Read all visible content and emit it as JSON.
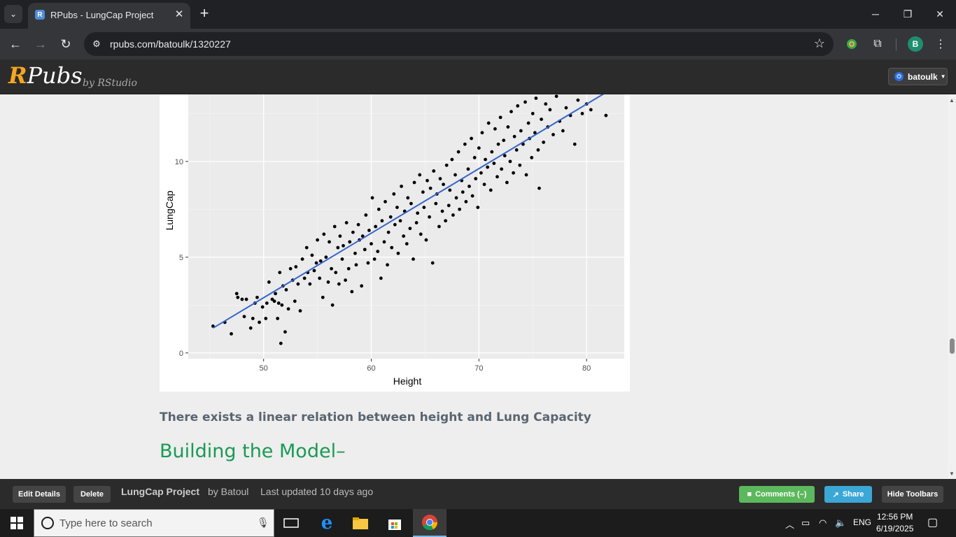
{
  "browser": {
    "tab_title": "RPubs - LungCap Project",
    "url": "rpubs.com/batoulk/1320227",
    "profile_initial": "B"
  },
  "site": {
    "logo_r": "R",
    "logo_rest": "Pubs",
    "by": "by RStudio",
    "user": "batoulk"
  },
  "content": {
    "statement": "There exists a linear relation between height and Lung Capacity",
    "heading": "Building the Model–"
  },
  "chart_data": {
    "type": "scatter",
    "xlabel": "Height",
    "ylabel": "LungCap",
    "xlim": [
      43,
      83.5
    ],
    "ylim": [
      -0.3,
      13.5
    ],
    "x_ticks": [
      50,
      60,
      70,
      80
    ],
    "y_ticks": [
      0,
      5,
      10
    ],
    "grid": true,
    "point_color": "#000000",
    "trend_color": "#3366cc",
    "trend_line": {
      "x": [
        45.3,
        81.8
      ],
      "y": [
        1.3,
        13.6
      ]
    },
    "points": [
      [
        45.3,
        1.4
      ],
      [
        46.4,
        1.6
      ],
      [
        47.0,
        1.0
      ],
      [
        47.5,
        3.1
      ],
      [
        47.6,
        2.9
      ],
      [
        48.0,
        2.8
      ],
      [
        48.2,
        1.9
      ],
      [
        48.4,
        2.8
      ],
      [
        48.8,
        1.3
      ],
      [
        49.0,
        1.8
      ],
      [
        49.2,
        2.6
      ],
      [
        49.4,
        2.9
      ],
      [
        49.6,
        1.6
      ],
      [
        49.9,
        2.4
      ],
      [
        50.2,
        1.8
      ],
      [
        50.3,
        2.6
      ],
      [
        50.5,
        3.7
      ],
      [
        50.8,
        2.8
      ],
      [
        51.0,
        2.7
      ],
      [
        51.1,
        3.1
      ],
      [
        51.3,
        1.8
      ],
      [
        51.4,
        2.6
      ],
      [
        51.5,
        4.2
      ],
      [
        51.6,
        0.5
      ],
      [
        51.7,
        2.5
      ],
      [
        51.8,
        3.5
      ],
      [
        52.0,
        1.1
      ],
      [
        52.1,
        3.3
      ],
      [
        52.3,
        2.3
      ],
      [
        52.5,
        4.4
      ],
      [
        52.7,
        3.8
      ],
      [
        52.9,
        2.7
      ],
      [
        53.0,
        4.5
      ],
      [
        53.2,
        3.6
      ],
      [
        53.4,
        2.2
      ],
      [
        53.6,
        4.9
      ],
      [
        53.8,
        3.9
      ],
      [
        54.0,
        5.5
      ],
      [
        54.1,
        4.2
      ],
      [
        54.3,
        3.6
      ],
      [
        54.5,
        5.1
      ],
      [
        54.7,
        4.3
      ],
      [
        54.9,
        4.7
      ],
      [
        55.0,
        5.9
      ],
      [
        55.2,
        3.9
      ],
      [
        55.3,
        4.8
      ],
      [
        55.5,
        2.9
      ],
      [
        55.6,
        6.2
      ],
      [
        55.8,
        5.0
      ],
      [
        56.0,
        3.7
      ],
      [
        56.1,
        5.8
      ],
      [
        56.3,
        4.4
      ],
      [
        56.4,
        2.5
      ],
      [
        56.6,
        6.6
      ],
      [
        56.7,
        4.2
      ],
      [
        56.9,
        5.5
      ],
      [
        57.0,
        3.6
      ],
      [
        57.1,
        6.1
      ],
      [
        57.3,
        4.9
      ],
      [
        57.4,
        5.6
      ],
      [
        57.6,
        3.8
      ],
      [
        57.7,
        6.8
      ],
      [
        57.9,
        4.4
      ],
      [
        58.0,
        5.8
      ],
      [
        58.2,
        3.2
      ],
      [
        58.3,
        6.3
      ],
      [
        58.5,
        5.2
      ],
      [
        58.6,
        4.6
      ],
      [
        58.8,
        6.7
      ],
      [
        58.9,
        5.9
      ],
      [
        59.1,
        3.5
      ],
      [
        59.2,
        6.1
      ],
      [
        59.4,
        5.4
      ],
      [
        59.5,
        7.2
      ],
      [
        59.7,
        4.7
      ],
      [
        59.8,
        6.4
      ],
      [
        60.0,
        5.7
      ],
      [
        60.1,
        8.1
      ],
      [
        60.3,
        4.9
      ],
      [
        60.4,
        6.6
      ],
      [
        60.6,
        5.3
      ],
      [
        60.7,
        7.5
      ],
      [
        60.9,
        3.9
      ],
      [
        61.0,
        6.9
      ],
      [
        61.2,
        5.8
      ],
      [
        61.3,
        7.9
      ],
      [
        61.5,
        4.6
      ],
      [
        61.6,
        6.3
      ],
      [
        61.8,
        7.1
      ],
      [
        61.9,
        5.5
      ],
      [
        62.1,
        8.3
      ],
      [
        62.2,
        6.7
      ],
      [
        62.4,
        7.6
      ],
      [
        62.5,
        5.2
      ],
      [
        62.7,
        6.9
      ],
      [
        62.8,
        8.7
      ],
      [
        63.0,
        6.1
      ],
      [
        63.1,
        7.4
      ],
      [
        63.3,
        5.7
      ],
      [
        63.4,
        8.1
      ],
      [
        63.6,
        6.5
      ],
      [
        63.7,
        7.8
      ],
      [
        63.9,
        4.9
      ],
      [
        64.0,
        8.9
      ],
      [
        64.2,
        6.8
      ],
      [
        64.3,
        7.3
      ],
      [
        64.5,
        9.3
      ],
      [
        64.6,
        6.2
      ],
      [
        64.8,
        8.4
      ],
      [
        64.9,
        7.6
      ],
      [
        65.1,
        5.9
      ],
      [
        65.2,
        9.0
      ],
      [
        65.4,
        7.1
      ],
      [
        65.5,
        8.6
      ],
      [
        65.7,
        4.7
      ],
      [
        65.8,
        9.5
      ],
      [
        66.0,
        7.8
      ],
      [
        66.1,
        8.3
      ],
      [
        66.3,
        6.6
      ],
      [
        66.4,
        9.1
      ],
      [
        66.6,
        7.4
      ],
      [
        66.7,
        8.8
      ],
      [
        66.9,
        6.9
      ],
      [
        67.0,
        9.8
      ],
      [
        67.2,
        7.7
      ],
      [
        67.3,
        8.5
      ],
      [
        67.5,
        10.1
      ],
      [
        67.6,
        7.2
      ],
      [
        67.8,
        9.3
      ],
      [
        67.9,
        8.1
      ],
      [
        68.1,
        10.5
      ],
      [
        68.2,
        7.5
      ],
      [
        68.4,
        9.0
      ],
      [
        68.5,
        8.4
      ],
      [
        68.7,
        10.9
      ],
      [
        68.8,
        7.9
      ],
      [
        69.0,
        9.6
      ],
      [
        69.1,
        8.7
      ],
      [
        69.3,
        11.2
      ],
      [
        69.4,
        8.2
      ],
      [
        69.6,
        10.2
      ],
      [
        69.7,
        9.1
      ],
      [
        69.9,
        7.6
      ],
      [
        70.0,
        10.7
      ],
      [
        70.2,
        9.4
      ],
      [
        70.3,
        11.5
      ],
      [
        70.5,
        8.8
      ],
      [
        70.6,
        10.1
      ],
      [
        70.8,
        9.7
      ],
      [
        70.9,
        12.0
      ],
      [
        71.1,
        8.5
      ],
      [
        71.2,
        10.5
      ],
      [
        71.4,
        9.9
      ],
      [
        71.5,
        11.7
      ],
      [
        71.7,
        9.2
      ],
      [
        71.8,
        10.9
      ],
      [
        72.0,
        12.3
      ],
      [
        72.1,
        9.6
      ],
      [
        72.3,
        11.1
      ],
      [
        72.4,
        10.3
      ],
      [
        72.6,
        8.9
      ],
      [
        72.7,
        11.8
      ],
      [
        72.9,
        10.0
      ],
      [
        73.0,
        12.6
      ],
      [
        73.2,
        9.4
      ],
      [
        73.3,
        11.3
      ],
      [
        73.5,
        10.6
      ],
      [
        73.6,
        12.9
      ],
      [
        73.8,
        9.8
      ],
      [
        73.9,
        11.6
      ],
      [
        74.1,
        10.9
      ],
      [
        74.3,
        13.1
      ],
      [
        74.4,
        9.3
      ],
      [
        74.6,
        12.0
      ],
      [
        74.7,
        11.2
      ],
      [
        74.9,
        10.2
      ],
      [
        75.0,
        12.5
      ],
      [
        75.2,
        11.5
      ],
      [
        75.3,
        13.3
      ],
      [
        75.5,
        10.6
      ],
      [
        75.6,
        8.6
      ],
      [
        75.8,
        12.2
      ],
      [
        76.0,
        11.0
      ],
      [
        76.2,
        13.0
      ],
      [
        76.4,
        11.8
      ],
      [
        76.6,
        12.7
      ],
      [
        76.9,
        11.4
      ],
      [
        77.2,
        13.4
      ],
      [
        77.5,
        12.1
      ],
      [
        77.8,
        11.6
      ],
      [
        78.1,
        12.8
      ],
      [
        78.5,
        12.4
      ],
      [
        78.9,
        10.9
      ],
      [
        79.2,
        13.2
      ],
      [
        79.6,
        12.5
      ],
      [
        80.0,
        13.0
      ],
      [
        80.4,
        12.7
      ],
      [
        81.8,
        12.4
      ]
    ]
  },
  "bottom_bar": {
    "edit": "Edit Details",
    "delete": "Delete",
    "title": "LungCap Project",
    "by": "by Batoul",
    "updated": "Last updated 10 days ago",
    "comments": "Comments (–)",
    "share": "Share",
    "hide": "Hide Toolbars"
  },
  "taskbar": {
    "search_placeholder": "Type here to search",
    "lang": "ENG",
    "time": "12:56 PM",
    "date": "6/19/2025"
  }
}
